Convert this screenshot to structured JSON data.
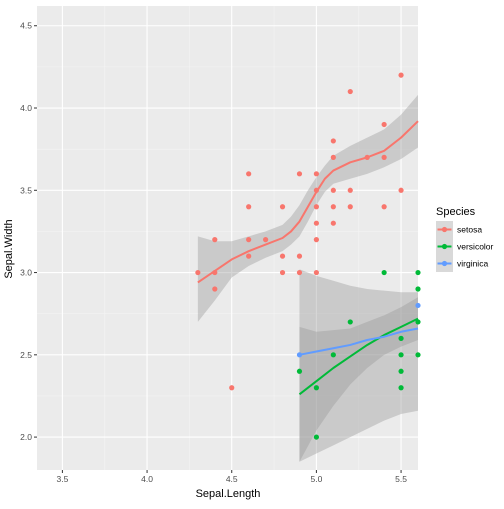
{
  "chart_data": {
    "type": "scatter",
    "title": "",
    "xlabel": "Sepal.Length",
    "ylabel": "Sepal.Width",
    "xlim": [
      3.35,
      5.6
    ],
    "ylim": [
      1.8,
      4.62
    ],
    "x_ticks": [
      3.5,
      4.0,
      4.5,
      5.0,
      5.5
    ],
    "y_ticks": [
      2.0,
      2.5,
      3.0,
      3.5,
      4.0,
      4.5
    ],
    "x_tick_labels": [
      "3.5",
      "4.0",
      "4.5",
      "5.0",
      "5.5"
    ],
    "y_tick_labels": [
      "2.0",
      "2.5",
      "3.0",
      "3.5",
      "4.0",
      "4.5"
    ],
    "grid": true,
    "legend": {
      "title": "Species",
      "position": "right"
    },
    "series": [
      {
        "name": "setosa",
        "color": "#F8766D",
        "points": [
          [
            4.3,
            3.0
          ],
          [
            4.4,
            3.2
          ],
          [
            4.4,
            3.0
          ],
          [
            4.4,
            2.9
          ],
          [
            4.5,
            2.3
          ],
          [
            4.6,
            3.6
          ],
          [
            4.6,
            3.4
          ],
          [
            4.6,
            3.2
          ],
          [
            4.6,
            3.1
          ],
          [
            4.7,
            3.2
          ],
          [
            4.8,
            3.4
          ],
          [
            4.8,
            3.1
          ],
          [
            4.8,
            3.0
          ],
          [
            4.9,
            3.6
          ],
          [
            4.9,
            3.1
          ],
          [
            4.9,
            3.0
          ],
          [
            5.0,
            3.6
          ],
          [
            5.0,
            3.5
          ],
          [
            5.0,
            3.4
          ],
          [
            5.0,
            3.3
          ],
          [
            5.0,
            3.2
          ],
          [
            5.0,
            3.0
          ],
          [
            5.1,
            3.8
          ],
          [
            5.1,
            3.7
          ],
          [
            5.1,
            3.5
          ],
          [
            5.1,
            3.4
          ],
          [
            5.1,
            3.3
          ],
          [
            5.2,
            4.1
          ],
          [
            5.2,
            3.5
          ],
          [
            5.2,
            3.4
          ],
          [
            5.3,
            3.7
          ],
          [
            5.4,
            3.9
          ],
          [
            5.4,
            3.7
          ],
          [
            5.4,
            3.4
          ],
          [
            5.5,
            4.2
          ],
          [
            5.5,
            3.5
          ]
        ],
        "fit": [
          [
            4.3,
            2.94
          ],
          [
            4.4,
            3.01
          ],
          [
            4.5,
            3.08
          ],
          [
            4.6,
            3.13
          ],
          [
            4.7,
            3.17
          ],
          [
            4.8,
            3.21
          ],
          [
            4.85,
            3.25
          ],
          [
            4.9,
            3.31
          ],
          [
            4.95,
            3.4
          ],
          [
            5.0,
            3.49
          ],
          [
            5.05,
            3.57
          ],
          [
            5.1,
            3.62
          ],
          [
            5.2,
            3.67
          ],
          [
            5.3,
            3.7
          ],
          [
            5.4,
            3.74
          ],
          [
            5.5,
            3.82
          ],
          [
            5.6,
            3.92
          ]
        ],
        "band": [
          [
            4.3,
            2.7,
            3.22
          ],
          [
            4.4,
            2.83,
            3.19
          ],
          [
            4.5,
            2.97,
            3.19
          ],
          [
            4.6,
            3.04,
            3.22
          ],
          [
            4.7,
            3.09,
            3.25
          ],
          [
            4.8,
            3.13,
            3.29
          ],
          [
            4.85,
            3.17,
            3.34
          ],
          [
            4.9,
            3.22,
            3.41
          ],
          [
            4.95,
            3.31,
            3.5
          ],
          [
            5.0,
            3.41,
            3.58
          ],
          [
            5.05,
            3.49,
            3.65
          ],
          [
            5.1,
            3.54,
            3.71
          ],
          [
            5.2,
            3.57,
            3.77
          ],
          [
            5.3,
            3.6,
            3.82
          ],
          [
            5.4,
            3.64,
            3.87
          ],
          [
            5.5,
            3.69,
            3.96
          ],
          [
            5.6,
            3.76,
            4.08
          ]
        ]
      },
      {
        "name": "versicolor",
        "color": "#00BA38",
        "points": [
          [
            4.9,
            2.4
          ],
          [
            5.0,
            2.3
          ],
          [
            5.0,
            2.0
          ],
          [
            5.1,
            2.5
          ],
          [
            5.2,
            2.7
          ],
          [
            5.4,
            3.0
          ],
          [
            5.5,
            2.6
          ],
          [
            5.5,
            2.5
          ],
          [
            5.5,
            2.4
          ],
          [
            5.5,
            2.3
          ],
          [
            5.6,
            3.0
          ],
          [
            5.6,
            2.9
          ],
          [
            5.6,
            2.7
          ],
          [
            5.6,
            2.5
          ]
        ],
        "fit": [
          [
            4.9,
            2.26
          ],
          [
            5.0,
            2.34
          ],
          [
            5.1,
            2.42
          ],
          [
            5.2,
            2.49
          ],
          [
            5.3,
            2.56
          ],
          [
            5.4,
            2.62
          ],
          [
            5.5,
            2.67
          ],
          [
            5.6,
            2.72
          ]
        ],
        "band": [
          [
            4.9,
            1.85,
            2.67
          ],
          [
            5.0,
            2.04,
            2.64
          ],
          [
            5.1,
            2.19,
            2.65
          ],
          [
            5.2,
            2.32,
            2.66
          ],
          [
            5.3,
            2.42,
            2.7
          ],
          [
            5.4,
            2.5,
            2.74
          ],
          [
            5.5,
            2.55,
            2.79
          ],
          [
            5.6,
            2.59,
            2.85
          ]
        ]
      },
      {
        "name": "virginica",
        "color": "#619CFF",
        "points": [
          [
            4.9,
            2.5
          ],
          [
            5.6,
            2.8
          ]
        ],
        "fit": [
          [
            4.9,
            2.5
          ],
          [
            5.0,
            2.52
          ],
          [
            5.1,
            2.54
          ],
          [
            5.2,
            2.56
          ],
          [
            5.3,
            2.59
          ],
          [
            5.4,
            2.61
          ],
          [
            5.5,
            2.64
          ],
          [
            5.6,
            2.66
          ]
        ],
        "band": [
          [
            4.9,
            1.85,
            3.02
          ],
          [
            5.0,
            1.9,
            2.98
          ],
          [
            5.1,
            1.95,
            2.95
          ],
          [
            5.2,
            2.0,
            2.92
          ],
          [
            5.3,
            2.05,
            2.9
          ],
          [
            5.4,
            2.1,
            2.89
          ],
          [
            5.5,
            2.14,
            2.88
          ],
          [
            5.6,
            2.16,
            2.88
          ]
        ]
      }
    ]
  }
}
